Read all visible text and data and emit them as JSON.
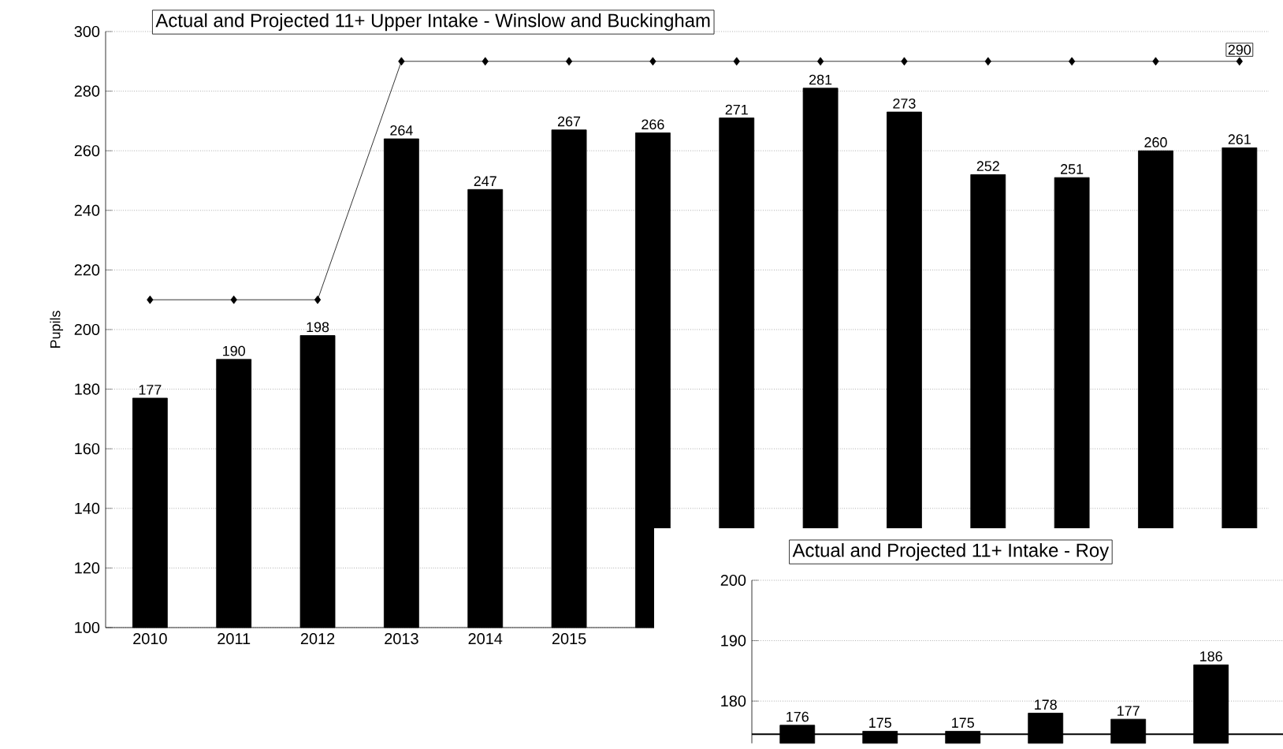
{
  "chart_data": [
    {
      "type": "bar",
      "title": "Actual and Projected 11+ Upper Intake - Winslow and Buckingham",
      "ylabel": "Pupils",
      "categories": [
        "2010",
        "2011",
        "2012",
        "2013",
        "2014",
        "2015",
        null,
        null,
        null,
        null,
        null,
        null,
        null,
        null
      ],
      "series": [
        {
          "type": "bar",
          "color": "#000000",
          "values": [
            177,
            190,
            198,
            264,
            247,
            267,
            266,
            271,
            281,
            273,
            252,
            251,
            260,
            261
          ]
        },
        {
          "type": "line",
          "color": "#000000",
          "marker": "diamond",
          "values": [
            210,
            210,
            210,
            290,
            290,
            290,
            290,
            290,
            290,
            290,
            290,
            290,
            290,
            290
          ],
          "value_labels": [
            null,
            null,
            null,
            null,
            null,
            null,
            null,
            null,
            null,
            null,
            null,
            null,
            null,
            "290"
          ]
        }
      ],
      "data_labels": true,
      "ylim": [
        100,
        300
      ],
      "yticks": [
        100,
        120,
        140,
        160,
        180,
        200,
        220,
        240,
        260,
        280,
        300
      ],
      "grid": "y"
    },
    {
      "type": "bar",
      "title": "Actual and Projected 11+ Intake - Roy",
      "categories": [
        null,
        null,
        null,
        null,
        null,
        null
      ],
      "series": [
        {
          "type": "bar",
          "color": "#000000",
          "values": [
            176,
            175,
            175,
            178,
            177,
            186
          ]
        }
      ],
      "ref_lines": [
        {
          "axis": "y",
          "value": 174.5,
          "color": "#000000"
        }
      ],
      "data_labels": true,
      "ylim": [
        173,
        200
      ],
      "yticks": [
        180,
        190,
        200
      ],
      "grid": "y",
      "tick_labels": "y"
    }
  ]
}
